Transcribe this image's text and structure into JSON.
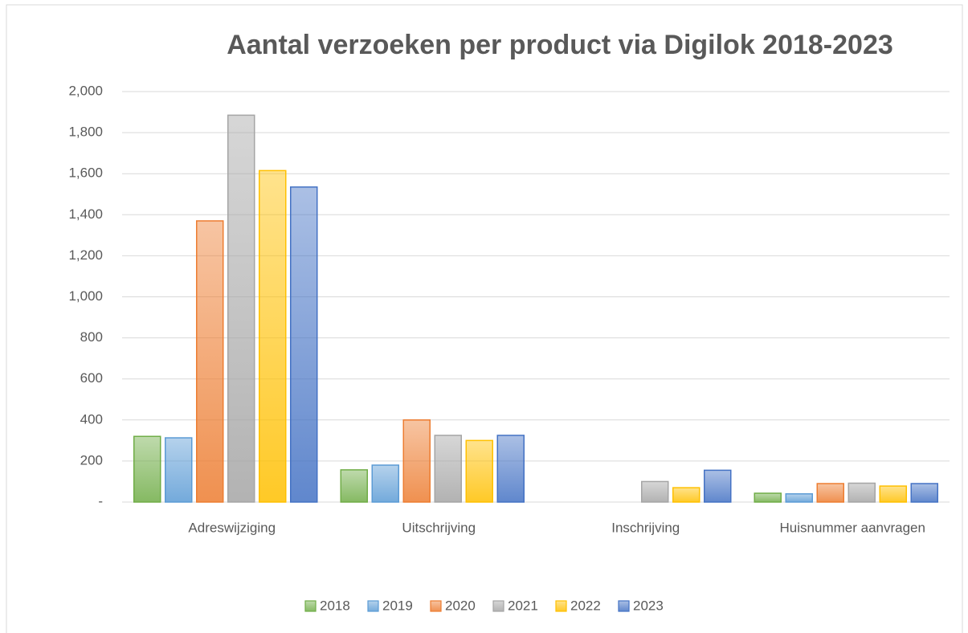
{
  "chart_data": {
    "type": "bar",
    "title": "Aantal verzoeken per product via Digilok 2018-2023",
    "categories": [
      "Adreswijziging",
      "Uitschrijving",
      "Inschrijving",
      "Huisnummer aanvragen"
    ],
    "series": [
      {
        "name": "2018",
        "color": "#70ad47",
        "values": [
          320,
          157,
          0,
          43
        ]
      },
      {
        "name": "2019",
        "color": "#5b9bd5",
        "values": [
          313,
          180,
          0,
          40
        ]
      },
      {
        "name": "2020",
        "color": "#ed7d31",
        "values": [
          1370,
          400,
          0,
          90
        ]
      },
      {
        "name": "2021",
        "color": "#a5a5a5",
        "values": [
          1885,
          325,
          100,
          92
        ]
      },
      {
        "name": "2022",
        "color": "#ffc000",
        "values": [
          1615,
          300,
          70,
          78
        ]
      },
      {
        "name": "2023",
        "color": "#4472c4",
        "values": [
          1535,
          325,
          155,
          90
        ]
      }
    ],
    "ylim": [
      0,
      2000
    ],
    "yticks": [
      {
        "value": 0,
        "label": "-"
      },
      200,
      400,
      600,
      800,
      {
        "value": 1000,
        "label": "1,000"
      },
      {
        "value": 1200,
        "label": "1,200"
      },
      {
        "value": 1400,
        "label": "1,400"
      },
      {
        "value": 1600,
        "label": "1,600"
      },
      {
        "value": 1800,
        "label": "1,800"
      },
      {
        "value": 2000,
        "label": "2,000"
      }
    ],
    "grid": true,
    "legend": "bottom"
  }
}
